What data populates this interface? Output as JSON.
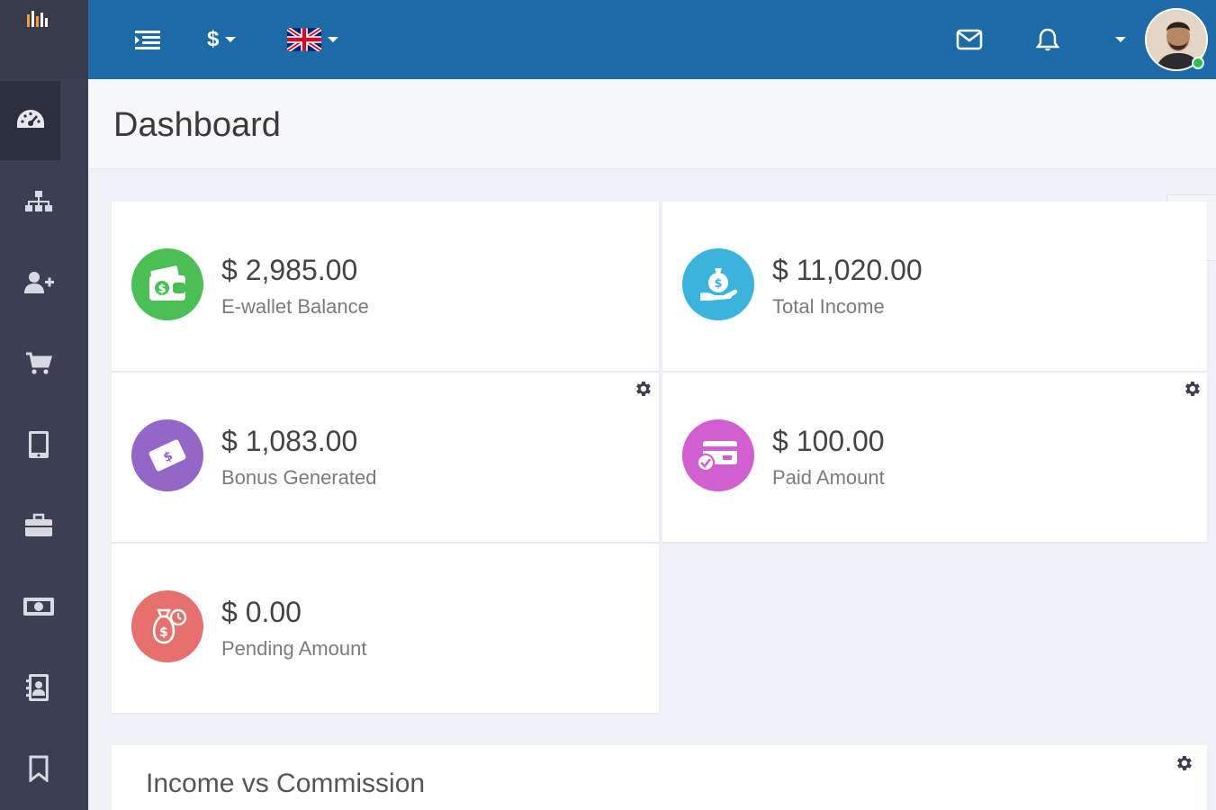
{
  "sidebar": {
    "items": [
      {
        "icon": "dashboard-icon"
      },
      {
        "icon": "network-tree-icon"
      },
      {
        "icon": "add-user-icon"
      },
      {
        "icon": "cart-icon"
      },
      {
        "icon": "tablet-icon"
      },
      {
        "icon": "briefcase-icon"
      },
      {
        "icon": "money-icon"
      },
      {
        "icon": "contact-book-icon"
      },
      {
        "icon": "bookmark-icon"
      }
    ]
  },
  "topbar": {
    "currency_symbol": "$",
    "language": "en-GB",
    "icons": [
      "menu-toggle-icon",
      "mail-icon",
      "bell-icon"
    ]
  },
  "page": {
    "title": "Dashboard"
  },
  "cards": [
    {
      "amount": "$ 2,985.00",
      "label": "E-wallet Balance",
      "color": "#4bbf55",
      "icon": "wallet-icon"
    },
    {
      "amount": "$ 11,020.00",
      "label": "Total Income",
      "color": "#3bb3dc",
      "icon": "money-bag-hand-icon"
    },
    {
      "amount": "$ 1,083.00",
      "label": "Bonus Generated",
      "color": "#9466c8",
      "icon": "bonus-envelope-icon"
    },
    {
      "amount": "$ 100.00",
      "label": "Paid Amount",
      "color": "#d25fd0",
      "icon": "paid-card-icon"
    },
    {
      "amount": "$ 0.00",
      "label": "Pending Amount",
      "color": "#e5706e",
      "icon": "pending-bag-icon"
    }
  ],
  "panel": {
    "title": "Income vs Commission"
  },
  "colors": {
    "sidebar": "#3b3f51",
    "topbar": "#1c6aa6",
    "background": "#eef1f5"
  }
}
